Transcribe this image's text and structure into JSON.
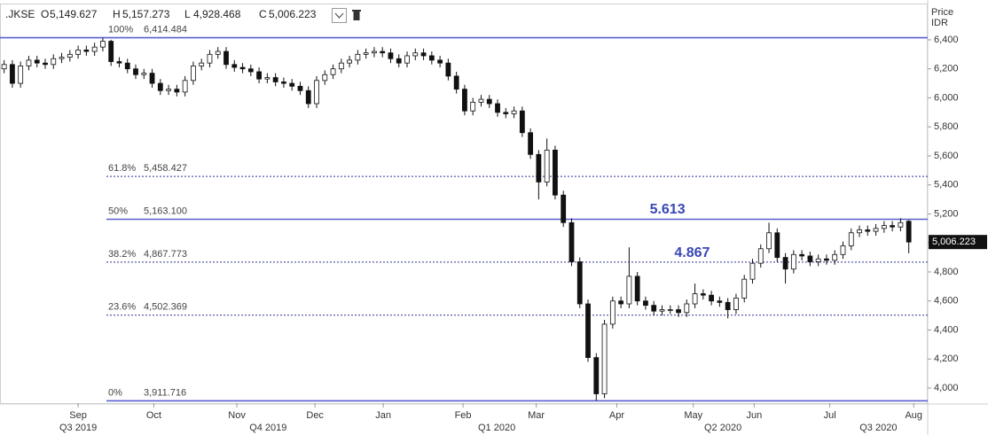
{
  "chart_data": {
    "type": "candlestick",
    "symbol": ".JKSE",
    "ohlc_header": [
      "O",
      "5,149.627",
      "H",
      "5,157.273",
      "L",
      "4,928.468",
      "C",
      "5,006.223"
    ],
    "y_axis_label": [
      "Price",
      "IDR"
    ],
    "last_price": {
      "value": 5006.223,
      "label": "5,006.223"
    },
    "open": [
      6200,
      6230,
      6100,
      6220,
      6260,
      6240,
      6230,
      6270,
      6280,
      6300,
      6330,
      6320,
      6350,
      6390,
      6250,
      6240,
      6200,
      6160,
      6170,
      6100,
      6050,
      6060,
      6040,
      6120,
      6220,
      6240,
      6300,
      6320,
      6230,
      6210,
      6200,
      6180,
      6130,
      6140,
      6110,
      6100,
      6080,
      6050,
      5960,
      6120,
      6160,
      6200,
      6240,
      6260,
      6300,
      6310,
      6320,
      6310,
      6270,
      6240,
      6290,
      6310,
      6290,
      6260,
      6240,
      6150,
      6060,
      5910,
      5970,
      5990,
      5960,
      5900,
      5890,
      5910,
      5760,
      5610,
      5420,
      5640,
      5330,
      5140,
      4870,
      4580,
      4210,
      3960,
      4440,
      4600,
      4580,
      4770,
      4600,
      4570,
      4530,
      4540,
      4540,
      4520,
      4580,
      4650,
      4640,
      4600,
      4590,
      4540,
      4620,
      4750,
      4860,
      4960,
      5070,
      4900,
      4820,
      4920,
      4910,
      4870,
      4890,
      4880,
      4920,
      4980,
      5070,
      5090,
      5080,
      5100,
      5120,
      5110,
      5149.627
    ],
    "high": [
      6260,
      6260,
      6250,
      6290,
      6290,
      6270,
      6300,
      6310,
      6330,
      6360,
      6360,
      6380,
      6414.484,
      6400,
      6280,
      6270,
      6230,
      6200,
      6200,
      6130,
      6090,
      6090,
      6150,
      6250,
      6270,
      6330,
      6350,
      6350,
      6260,
      6240,
      6230,
      6210,
      6170,
      6170,
      6140,
      6130,
      6110,
      6080,
      6150,
      6190,
      6230,
      6270,
      6290,
      6330,
      6340,
      6350,
      6350,
      6340,
      6300,
      6320,
      6340,
      6340,
      6320,
      6290,
      6270,
      6180,
      6090,
      6000,
      6020,
      6020,
      5990,
      5930,
      5940,
      5940,
      5790,
      5640,
      5720,
      5670,
      5360,
      5170,
      4900,
      4610,
      4240,
      4470,
      4630,
      4630,
      4970,
      4800,
      4630,
      4600,
      4570,
      4570,
      4570,
      4610,
      4720,
      4680,
      4670,
      4630,
      4620,
      4650,
      4780,
      4890,
      4990,
      5140,
      5100,
      4930,
      4950,
      4950,
      4940,
      4920,
      4920,
      4950,
      5010,
      5100,
      5120,
      5120,
      5130,
      5150,
      5150,
      5170,
      5157.273
    ],
    "low": [
      6170,
      6070,
      6070,
      6190,
      6210,
      6200,
      6200,
      6240,
      6250,
      6270,
      6290,
      6290,
      6320,
      6220,
      6210,
      6170,
      6130,
      6130,
      6070,
      6020,
      6020,
      6010,
      6010,
      6090,
      6190,
      6210,
      6270,
      6200,
      6180,
      6170,
      6150,
      6100,
      6100,
      6080,
      6070,
      6050,
      6020,
      5930,
      5930,
      6090,
      6130,
      6170,
      6210,
      6230,
      6270,
      6280,
      6280,
      6240,
      6210,
      6210,
      6260,
      6260,
      6230,
      6210,
      6120,
      6030,
      5880,
      5880,
      5940,
      5930,
      5870,
      5860,
      5860,
      5730,
      5580,
      5300,
      5390,
      5300,
      5110,
      4840,
      4550,
      4180,
      3911.716,
      3930,
      4410,
      4550,
      4550,
      4570,
      4540,
      4500,
      4500,
      4510,
      4490,
      4490,
      4550,
      4610,
      4570,
      4560,
      4480,
      4510,
      4590,
      4720,
      4830,
      4930,
      4870,
      4720,
      4790,
      4880,
      4840,
      4840,
      4850,
      4850,
      4890,
      4950,
      5040,
      5050,
      5050,
      5070,
      5080,
      5080,
      4928.468
    ],
    "close": [
      6230,
      6100,
      6220,
      6260,
      6240,
      6230,
      6270,
      6280,
      6300,
      6330,
      6320,
      6350,
      6390,
      6250,
      6240,
      6200,
      6160,
      6170,
      6100,
      6050,
      6060,
      6040,
      6120,
      6220,
      6240,
      6300,
      6320,
      6230,
      6210,
      6200,
      6180,
      6130,
      6140,
      6110,
      6100,
      6080,
      6050,
      5960,
      6120,
      6160,
      6200,
      6240,
      6260,
      6300,
      6310,
      6320,
      6310,
      6270,
      6240,
      6290,
      6310,
      6290,
      6260,
      6240,
      6150,
      6060,
      5910,
      5970,
      5990,
      5960,
      5900,
      5890,
      5910,
      5760,
      5610,
      5420,
      5640,
      5330,
      5140,
      4870,
      4580,
      4210,
      3960,
      4440,
      4600,
      4580,
      4770,
      4600,
      4570,
      4530,
      4540,
      4540,
      4520,
      4580,
      4650,
      4640,
      4600,
      4590,
      4540,
      4620,
      4750,
      4860,
      4960,
      5070,
      4900,
      4820,
      4920,
      4910,
      4870,
      4890,
      4880,
      4920,
      4980,
      5070,
      5090,
      5080,
      5100,
      5120,
      5110,
      5140,
      5006.223
    ],
    "up_color": "#ffffff",
    "down_color": "#111111",
    "xlim": [
      -0.5,
      112.3
    ],
    "xticks": [
      {
        "value": 9,
        "label": "Sep"
      },
      {
        "value": 18.2,
        "label": "Oct"
      },
      {
        "value": 28.3,
        "label": "Nov"
      },
      {
        "value": 37.8,
        "label": "Dec"
      },
      {
        "value": 46.1,
        "label": "Jan"
      },
      {
        "value": 55.8,
        "label": "Feb"
      },
      {
        "value": 64.7,
        "label": "Mar"
      },
      {
        "value": 74.5,
        "label": "Apr"
      },
      {
        "value": 83.8,
        "label": "May"
      },
      {
        "value": 91.2,
        "label": "Jun"
      },
      {
        "value": 100.4,
        "label": "Jul"
      },
      {
        "value": 110.6,
        "label": "Aug"
      }
    ],
    "quarter_ticks": [
      {
        "value": 9,
        "label": "Q3 2019"
      },
      {
        "value": 32.1,
        "label": "Q4 2019"
      },
      {
        "value": 59.9,
        "label": "Q1 2020"
      },
      {
        "value": 87.4,
        "label": "Q2 2020"
      },
      {
        "value": 106.3,
        "label": "Q3 2020"
      }
    ],
    "ylim": [
      3896,
      6644
    ],
    "yticks": [
      {
        "value": 4000,
        "label": "4,000"
      },
      {
        "value": 4200,
        "label": "4,200"
      },
      {
        "value": 4400,
        "label": "4,400"
      },
      {
        "value": 4600,
        "label": "4,600"
      },
      {
        "value": 4800,
        "label": "4,800"
      },
      {
        "value": 5000,
        "label": "5,000"
      },
      {
        "value": 5200,
        "label": "5,200"
      },
      {
        "value": 5400,
        "label": "5,400"
      },
      {
        "value": 5600,
        "label": "5,600"
      },
      {
        "value": 5800,
        "label": "5,800"
      },
      {
        "value": 6000,
        "label": "6,000"
      },
      {
        "value": 6200,
        "label": "6,200"
      },
      {
        "value": 6400,
        "label": "6,400"
      }
    ],
    "grid": false,
    "levels": [
      {
        "pct": "100%",
        "value": 6414.484,
        "label": "6,414.484",
        "color": "#5a5fd0",
        "style": "solid"
      },
      {
        "pct": "61.8%",
        "value": 5458.427,
        "label": "5,458.427",
        "color": "#2e348f",
        "style": "dotted"
      },
      {
        "pct": "50%",
        "value": 5163.1,
        "label": "5,163.100",
        "color": "#5a5fd0",
        "style": "solid"
      },
      {
        "pct": "38.2%",
        "value": 4867.773,
        "label": "4,867.773",
        "color": "#2e348f",
        "style": "dotted"
      },
      {
        "pct": "23.6%",
        "value": 4502.369,
        "label": "4,502.369",
        "color": "#2e348f",
        "style": "dotted"
      },
      {
        "pct": "0%",
        "value": 3911.716,
        "label": "3,911.716",
        "color": "#5a5fd0",
        "style": "solid"
      }
    ],
    "annotations": [
      {
        "text": "5.613",
        "x": 78.5,
        "y": 5230
      },
      {
        "text": "4.867",
        "x": 81.5,
        "y": 4930
      }
    ]
  }
}
